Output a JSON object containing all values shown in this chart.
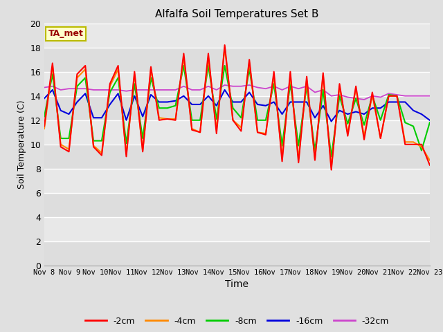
{
  "title": "Alfalfa Soil Temperatures Set B",
  "xlabel": "Time",
  "ylabel": "Soil Temperature (C)",
  "ylim": [
    0,
    20
  ],
  "yticks": [
    0,
    2,
    4,
    6,
    8,
    10,
    12,
    14,
    16,
    18,
    20
  ],
  "fig_bg_color": "#e0e0e0",
  "plot_bg_color": "#e8e8e8",
  "grid_color": "#ffffff",
  "annotation_text": "TA_met",
  "annotation_color": "#990000",
  "annotation_bg": "#ffffcc",
  "annotation_edge": "#bbbb00",
  "series_colors": {
    "-2cm": "#ff0000",
    "-4cm": "#ff8800",
    "-8cm": "#00cc00",
    "-16cm": "#0000dd",
    "-32cm": "#cc44cc"
  },
  "x_labels": [
    "Nov 8",
    "Nov 9",
    "Nov 10",
    "Nov 11",
    "Nov 12",
    "Nov 13",
    "Nov 14",
    "Nov 15",
    "Nov 16",
    "Nov 17",
    "Nov 18",
    "Nov 19",
    "Nov 20",
    "Nov 21",
    "Nov 22",
    "Nov 23"
  ],
  "t2cm": [
    11.5,
    16.7,
    9.8,
    9.4,
    15.8,
    16.5,
    9.8,
    9.1,
    15.0,
    16.5,
    9.0,
    16.0,
    9.4,
    16.4,
    12.0,
    12.1,
    12.0,
    17.5,
    11.2,
    11.0,
    17.5,
    10.9,
    18.2,
    12.0,
    11.1,
    17.0,
    11.0,
    10.8,
    16.0,
    8.6,
    16.0,
    8.5,
    15.6,
    8.7,
    15.9,
    7.9,
    15.0,
    10.7,
    14.8,
    10.4,
    14.3,
    10.5,
    14.0,
    14.0,
    10.0,
    10.0,
    10.0,
    8.3
  ],
  "t4cm": [
    11.3,
    16.5,
    10.0,
    9.6,
    15.5,
    16.2,
    9.9,
    9.3,
    14.8,
    16.2,
    9.2,
    15.8,
    9.5,
    16.2,
    12.2,
    12.1,
    12.1,
    17.2,
    11.3,
    11.0,
    17.2,
    11.2,
    18.0,
    12.0,
    11.4,
    16.8,
    11.0,
    10.9,
    15.7,
    8.9,
    15.7,
    8.8,
    15.3,
    8.8,
    15.7,
    8.1,
    14.8,
    10.9,
    14.6,
    10.7,
    14.1,
    10.5,
    14.0,
    14.0,
    10.2,
    10.2,
    9.8,
    8.7
  ],
  "t8cm": [
    12.3,
    15.8,
    10.5,
    10.5,
    14.8,
    15.5,
    10.3,
    10.3,
    14.3,
    15.5,
    10.1,
    15.0,
    10.5,
    15.5,
    13.0,
    13.0,
    13.2,
    16.5,
    12.0,
    12.0,
    16.5,
    12.1,
    16.5,
    13.0,
    12.2,
    16.2,
    12.0,
    12.0,
    15.0,
    9.9,
    15.0,
    9.9,
    14.8,
    9.5,
    14.5,
    9.0,
    14.0,
    11.7,
    13.8,
    11.6,
    14.0,
    12.0,
    14.1,
    14.0,
    11.8,
    11.5,
    9.5,
    11.8
  ],
  "t16cm": [
    13.8,
    14.5,
    12.8,
    12.5,
    13.5,
    14.2,
    12.2,
    12.2,
    13.3,
    14.2,
    12.0,
    14.0,
    12.3,
    14.1,
    13.5,
    13.5,
    13.6,
    14.0,
    13.3,
    13.3,
    14.0,
    13.2,
    14.5,
    13.5,
    13.5,
    14.3,
    13.3,
    13.2,
    13.5,
    12.5,
    13.5,
    13.5,
    13.5,
    12.2,
    13.2,
    11.9,
    12.8,
    12.5,
    12.7,
    12.5,
    13.0,
    13.0,
    13.5,
    13.5,
    13.5,
    12.8,
    12.5,
    12.0
  ],
  "t32cm": [
    14.7,
    14.8,
    14.5,
    14.6,
    14.6,
    14.6,
    14.5,
    14.5,
    14.5,
    14.5,
    14.4,
    14.5,
    14.5,
    14.5,
    14.5,
    14.5,
    14.5,
    14.8,
    14.5,
    14.5,
    14.8,
    14.5,
    14.9,
    14.8,
    14.8,
    14.9,
    14.7,
    14.6,
    14.8,
    14.5,
    14.8,
    14.6,
    14.8,
    14.3,
    14.5,
    14.0,
    14.1,
    13.9,
    13.8,
    13.7,
    14.0,
    13.9,
    14.2,
    14.1,
    14.0,
    14.0,
    14.0,
    14.0
  ]
}
